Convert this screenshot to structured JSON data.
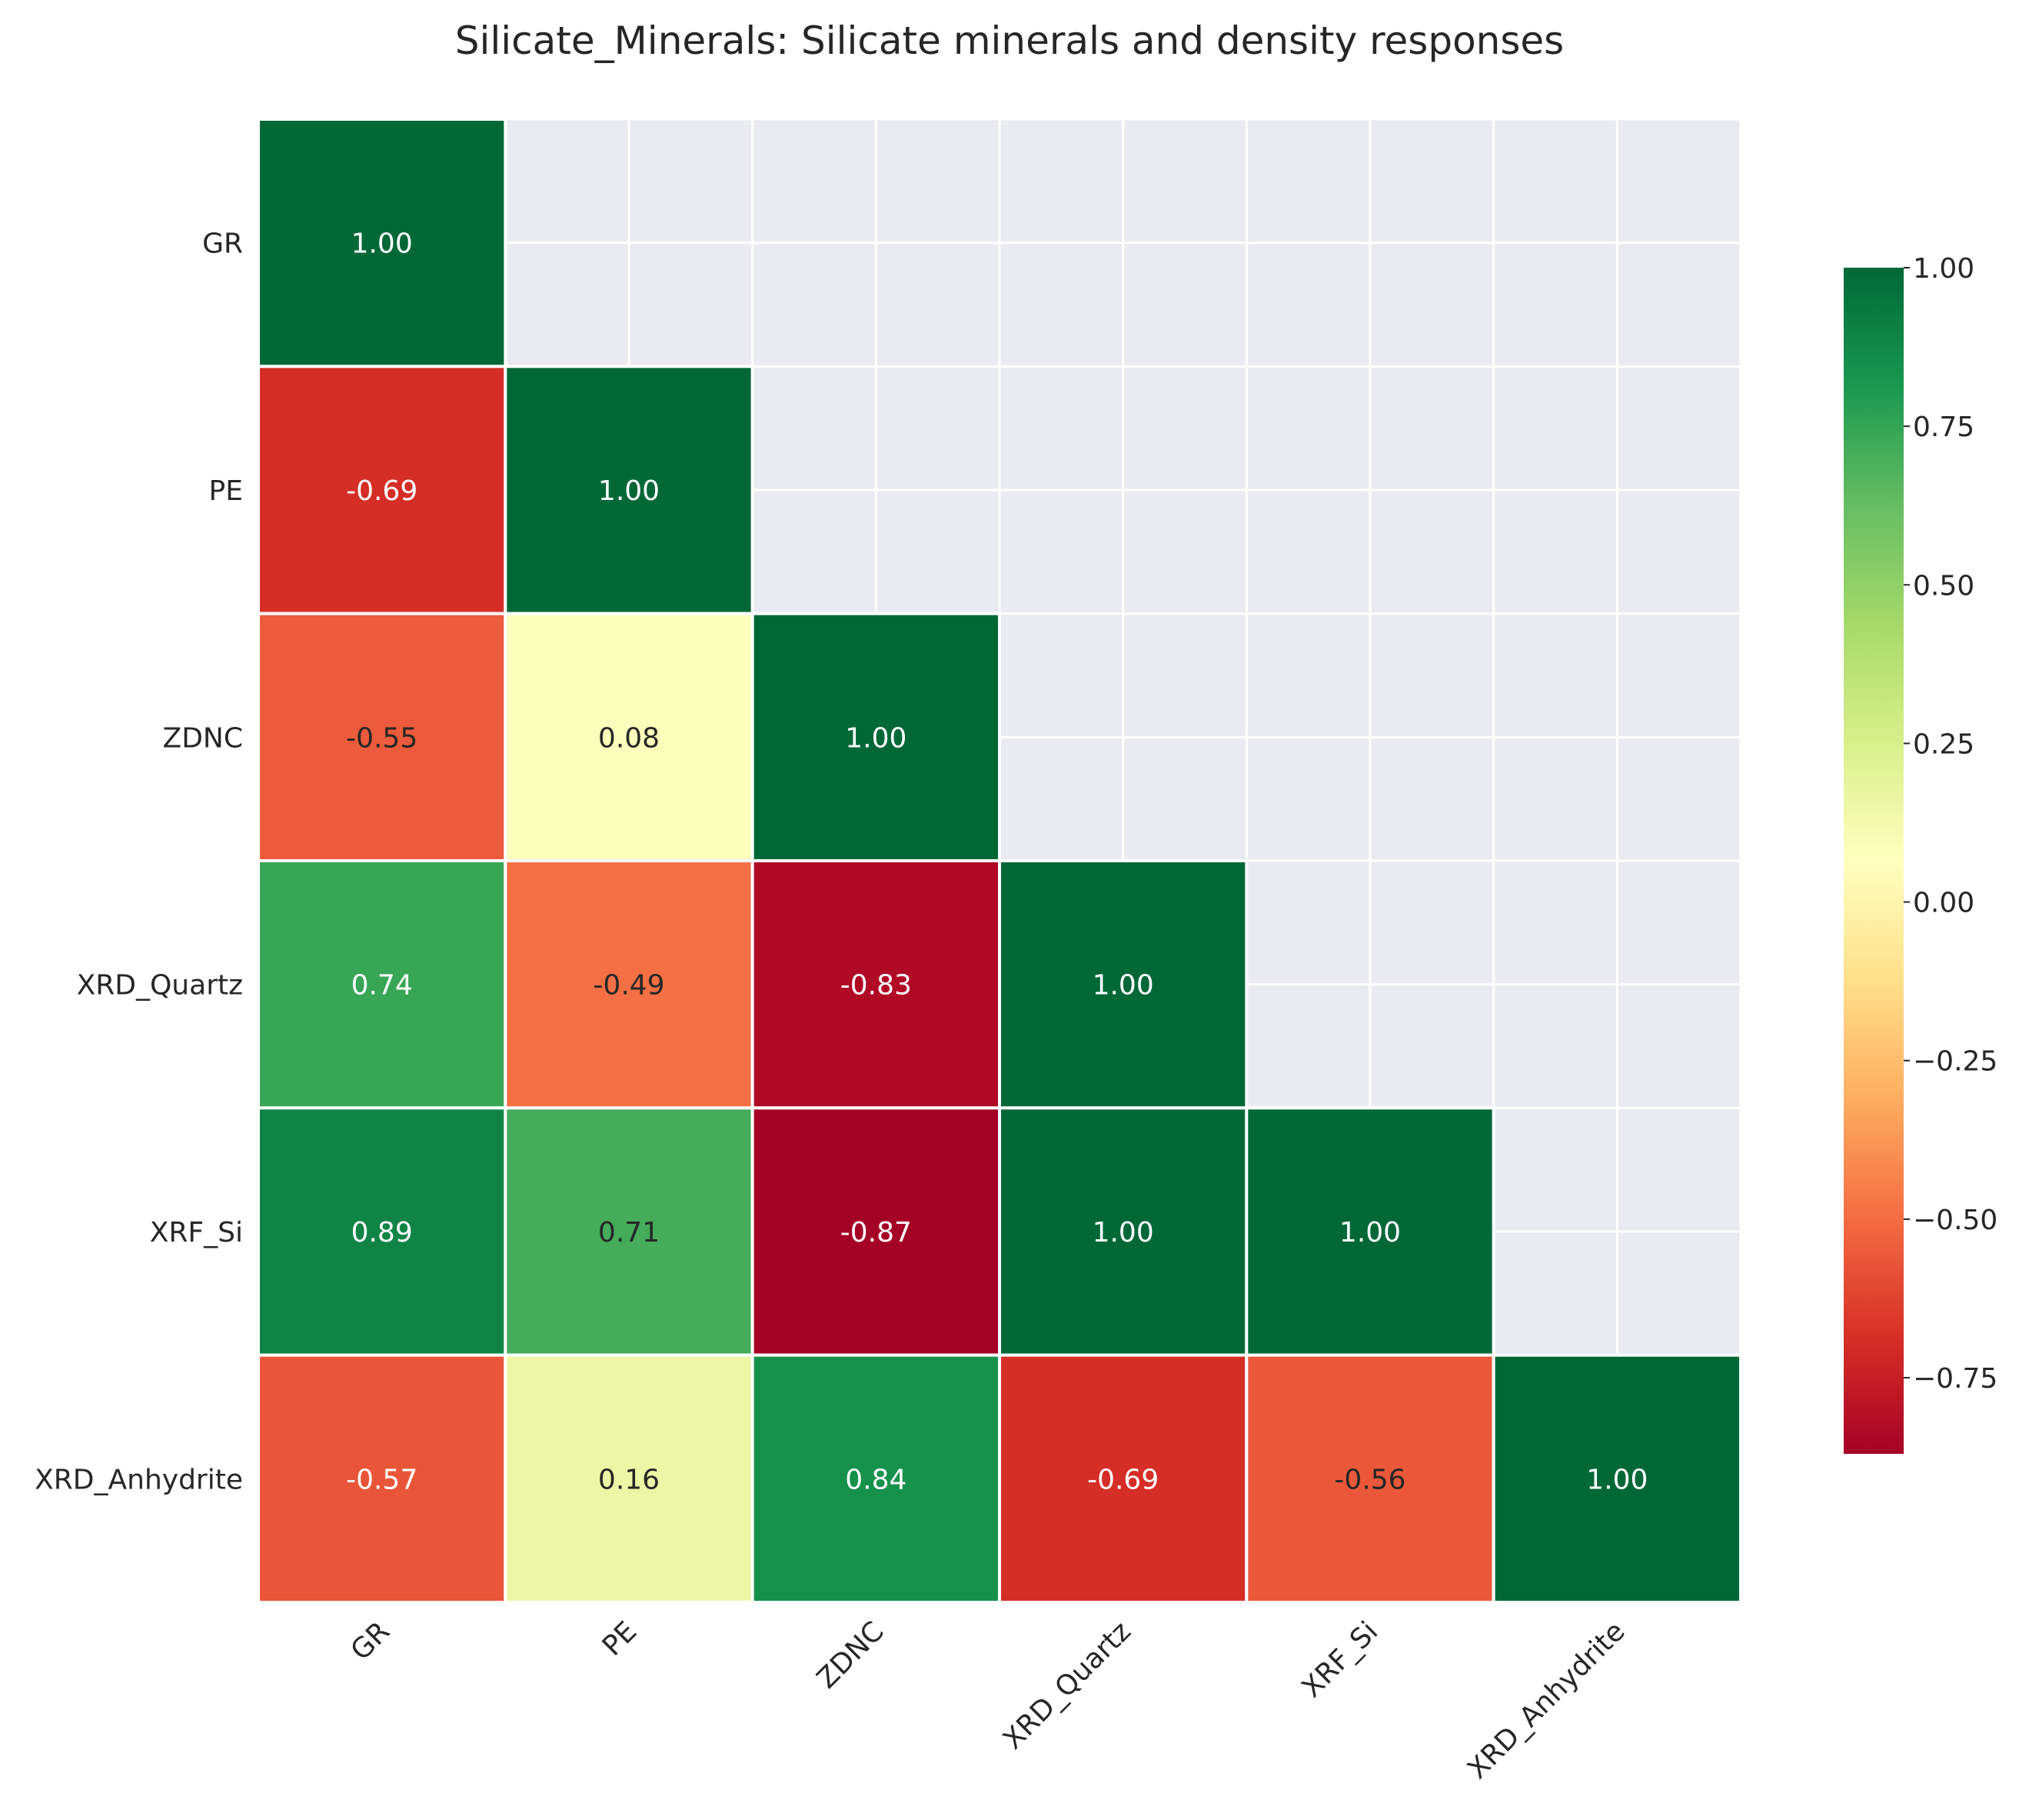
{
  "chart_data": {
    "type": "heatmap",
    "title": "Silicate_Minerals: Silicate minerals and density responses",
    "variables": [
      "GR",
      "PE",
      "ZDNC",
      "XRD_Quartz",
      "XRF_Si",
      "XRD_Anhydrite"
    ],
    "mask": "upper-triangle",
    "values": [
      [
        1.0,
        null,
        null,
        null,
        null,
        null
      ],
      [
        -0.69,
        1.0,
        null,
        null,
        null,
        null
      ],
      [
        -0.55,
        0.08,
        1.0,
        null,
        null,
        null
      ],
      [
        0.74,
        -0.49,
        -0.83,
        1.0,
        null,
        null
      ],
      [
        0.89,
        0.71,
        -0.87,
        1.0,
        1.0,
        null
      ],
      [
        -0.57,
        0.16,
        0.84,
        -0.69,
        -0.56,
        1.0
      ]
    ],
    "labels": [
      [
        "1.00",
        "",
        "",
        "",
        "",
        ""
      ],
      [
        "-0.69",
        "1.00",
        "",
        "",
        "",
        ""
      ],
      [
        "-0.55",
        "0.08",
        "1.00",
        "",
        "",
        ""
      ],
      [
        "0.74",
        "-0.49",
        "-0.83",
        "1.00",
        "",
        ""
      ],
      [
        "0.89",
        "0.71",
        "-0.87",
        "1.00",
        "1.00",
        ""
      ],
      [
        "-0.57",
        "0.16",
        "0.84",
        "-0.69",
        "-0.56",
        "1.00"
      ]
    ],
    "colorbar": {
      "colormap": "RdYlGn",
      "range": [
        -0.87,
        1.0
      ],
      "ticks": [
        1.0,
        0.75,
        0.5,
        0.25,
        0.0,
        -0.25,
        -0.5,
        -0.75
      ],
      "tick_labels": [
        "1.00",
        "0.75",
        "0.50",
        "0.25",
        "0.00",
        "−0.25",
        "−0.50",
        "−0.75"
      ]
    },
    "grid": true
  },
  "colors": {
    "background": "#ffffff",
    "masked_area": "#eaeaf2",
    "grid_line": "#ffffff",
    "text_dark": "#262626",
    "text_light": "#ffffff",
    "colormap_stops": [
      "#a50026",
      "#d73027",
      "#f46d43",
      "#fdae61",
      "#fee08b",
      "#ffffbf",
      "#d9ef8b",
      "#a6d96a",
      "#66bd63",
      "#1a9850",
      "#006837"
    ]
  }
}
